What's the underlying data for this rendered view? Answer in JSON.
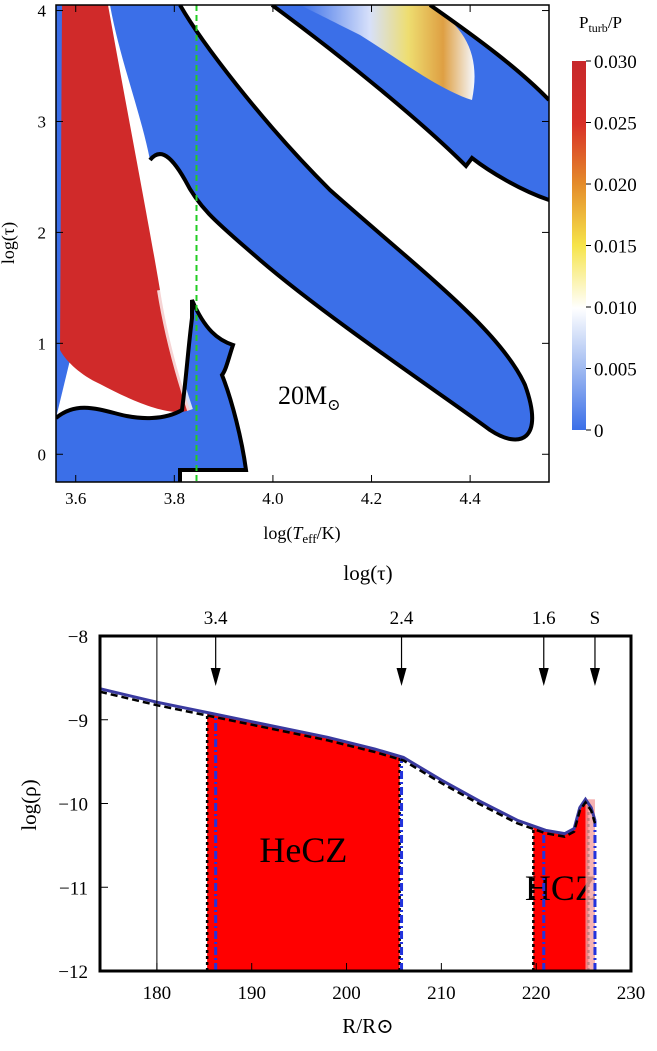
{
  "chart_data": [
    {
      "type": "heatmap",
      "xlabel": "log(Teff/K)",
      "ylabel": "log(τ)",
      "xlim": [
        3.56,
        4.56
      ],
      "ylim": [
        -0.25,
        4.05
      ],
      "xticks": [
        "3.6",
        "3.8",
        "4.0",
        "4.2",
        "4.4"
      ],
      "yticks": [
        "0",
        "1",
        "2",
        "3",
        "4"
      ],
      "annotation": "20M",
      "colorbar": {
        "title": "Pturb/P",
        "ticks": [
          "0.030",
          "0.025",
          "0.020",
          "0.015",
          "0.010",
          "0.005",
          "0"
        ],
        "range": [
          0,
          0.03
        ],
        "colors": [
          "#3b6fe8",
          "#ffffff",
          "#f4e04a",
          "#e08a2a",
          "#d52a2a",
          "#c7282b"
        ]
      },
      "reference_line": {
        "x": 3.845,
        "color": "#22cc22"
      }
    },
    {
      "type": "area",
      "title": "log(τ)",
      "xlabel": "R/R⊙",
      "ylabel": "log(ρ)",
      "xlim": [
        174,
        230
      ],
      "ylim": [
        -12,
        -8
      ],
      "xticks": [
        "180",
        "190",
        "200",
        "210",
        "220",
        "230"
      ],
      "yticks": [
        "−8",
        "−9",
        "−10",
        "−11",
        "−12"
      ],
      "top_markers": [
        {
          "label": "3.4",
          "x": 186.2
        },
        {
          "label": "2.4",
          "x": 205.8
        },
        {
          "label": "1.6",
          "x": 220.8
        },
        {
          "label": "S",
          "x": 226.2
        }
      ],
      "regions": [
        {
          "label": "HeCZ",
          "x0": 185.3,
          "x1": 205.6,
          "color": "#ff0000"
        },
        {
          "label": "HCZ",
          "x0": 219.7,
          "x1": 225.5,
          "color": "#ff0000"
        }
      ],
      "curve_x": [
        174,
        180,
        186,
        192,
        198,
        203,
        206,
        210,
        214,
        218,
        221,
        223,
        224,
        224.6,
        225.2,
        225.8,
        226.2
      ],
      "curve_y": [
        -8.63,
        -8.79,
        -8.93,
        -9.07,
        -9.21,
        -9.35,
        -9.45,
        -9.72,
        -9.97,
        -10.2,
        -10.32,
        -10.36,
        -10.3,
        -10.05,
        -9.95,
        -10.05,
        -10.2
      ],
      "vline": {
        "x": 180
      },
      "colors": {
        "curve": "#3a3aa0",
        "dashed": "#000000",
        "dashdot": "#2233dd",
        "region": "#ff0000"
      }
    }
  ]
}
